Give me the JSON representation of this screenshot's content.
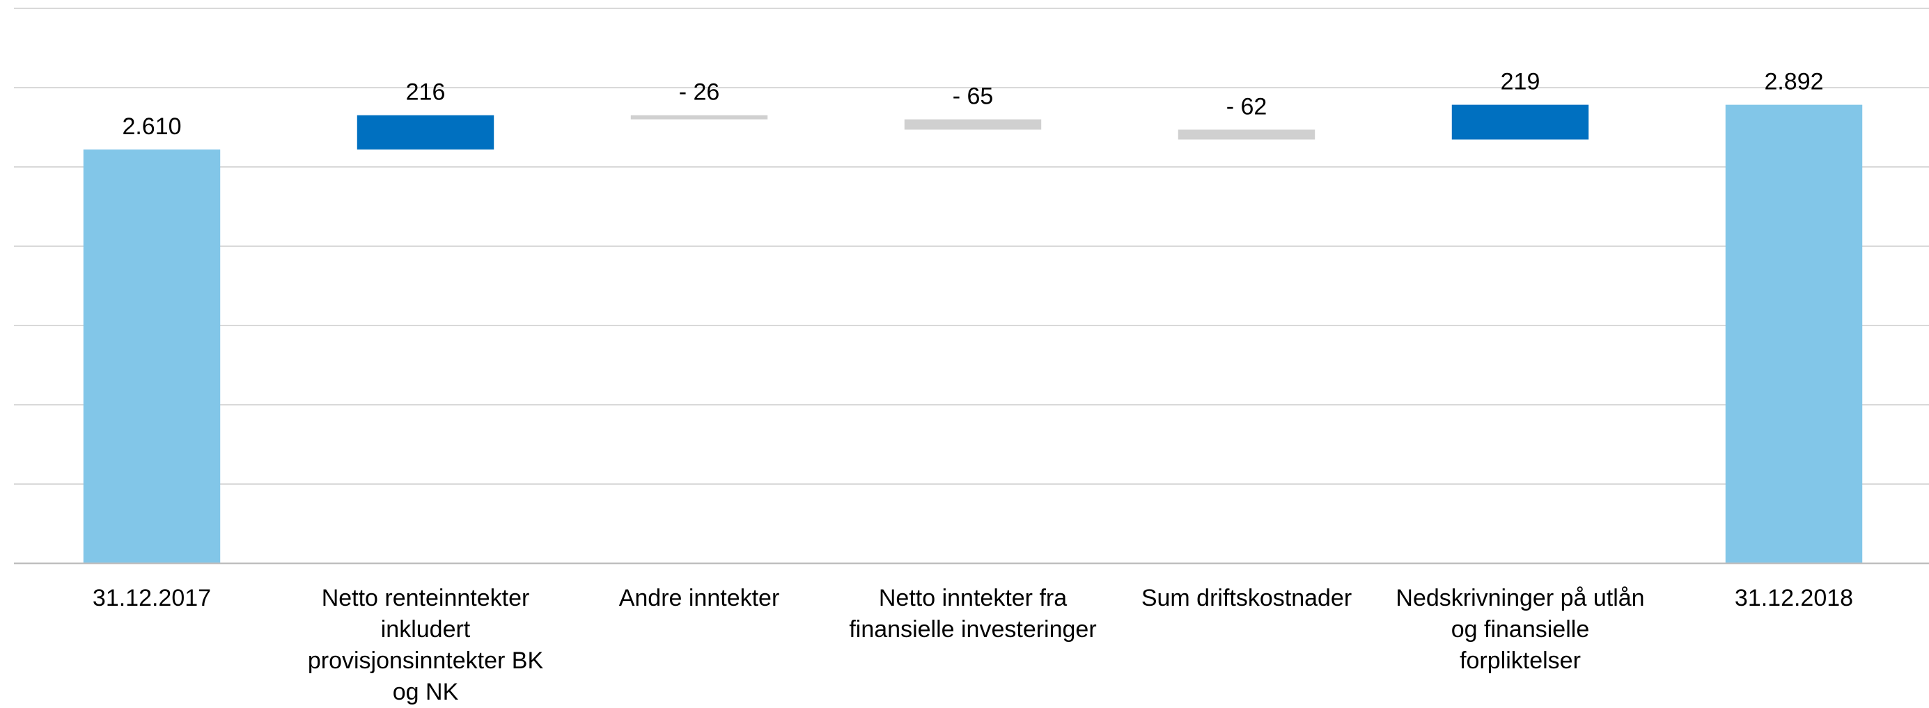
{
  "chart_data": {
    "type": "waterfall",
    "categories": [
      "31.12.2017",
      "Netto renteinntekter inkludert provisjonsinntekter BK og NK",
      "Andre inntekter",
      "Netto inntekter fra finansielle investeringer",
      "Sum driftskostnader",
      "Nedskrivninger på utlån og finansielle forpliktelser",
      "31.12.2018"
    ],
    "values": [
      2610,
      216,
      -26,
      -65,
      -62,
      219,
      2892
    ],
    "value_labels": [
      "2.610",
      "216",
      "- 26",
      "- 65",
      "- 62",
      "219",
      "2.892"
    ],
    "kinds": [
      "total",
      "increase",
      "decrease",
      "decrease",
      "decrease",
      "increase",
      "total"
    ],
    "colors": {
      "total": "#82c6e8",
      "increase": "#0070c0",
      "decrease": "#d0d0d0"
    },
    "ylim": [
      0,
      3500
    ],
    "grid": true,
    "title": "",
    "xlabel": "",
    "ylabel": ""
  }
}
